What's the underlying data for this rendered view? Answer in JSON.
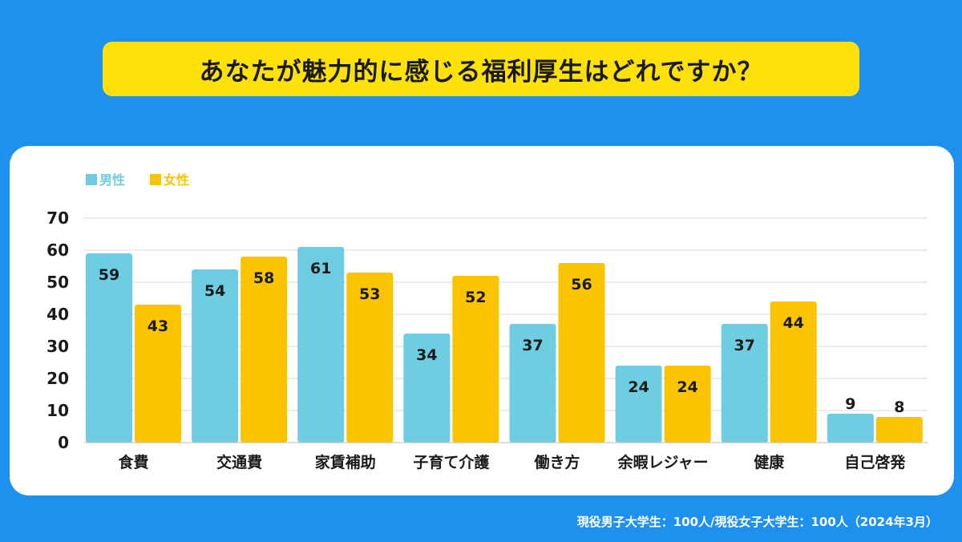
{
  "title": "あなたが魅力的に感じる福利厚生はどれですか？",
  "footnote": "現役男子大学生：100人/現役女子大学生：100人（2024年3月）",
  "colors": {
    "male": "#6ecde0",
    "female": "#fbc400",
    "background": "#1e90ee",
    "title_bg": "#ffe10a"
  },
  "chart_data": {
    "type": "bar",
    "title": "あなたが魅力的に感じる福利厚生はどれですか？",
    "categories": [
      "食費",
      "交通費",
      "家賃補助",
      "子育て介護",
      "働き方",
      "余暇レジャー",
      "健康",
      "自己啓発"
    ],
    "series": [
      {
        "name": "男性",
        "values": [
          59,
          54,
          61,
          34,
          37,
          24,
          37,
          9
        ]
      },
      {
        "name": "女性",
        "values": [
          43,
          58,
          53,
          52,
          56,
          24,
          44,
          8
        ]
      }
    ],
    "ylim": [
      0,
      70
    ],
    "yticks": [
      "0",
      "10",
      "20",
      "30",
      "40",
      "50",
      "60",
      "70"
    ],
    "xlabel": "",
    "ylabel": "",
    "grid": true,
    "legend": "top-left"
  }
}
